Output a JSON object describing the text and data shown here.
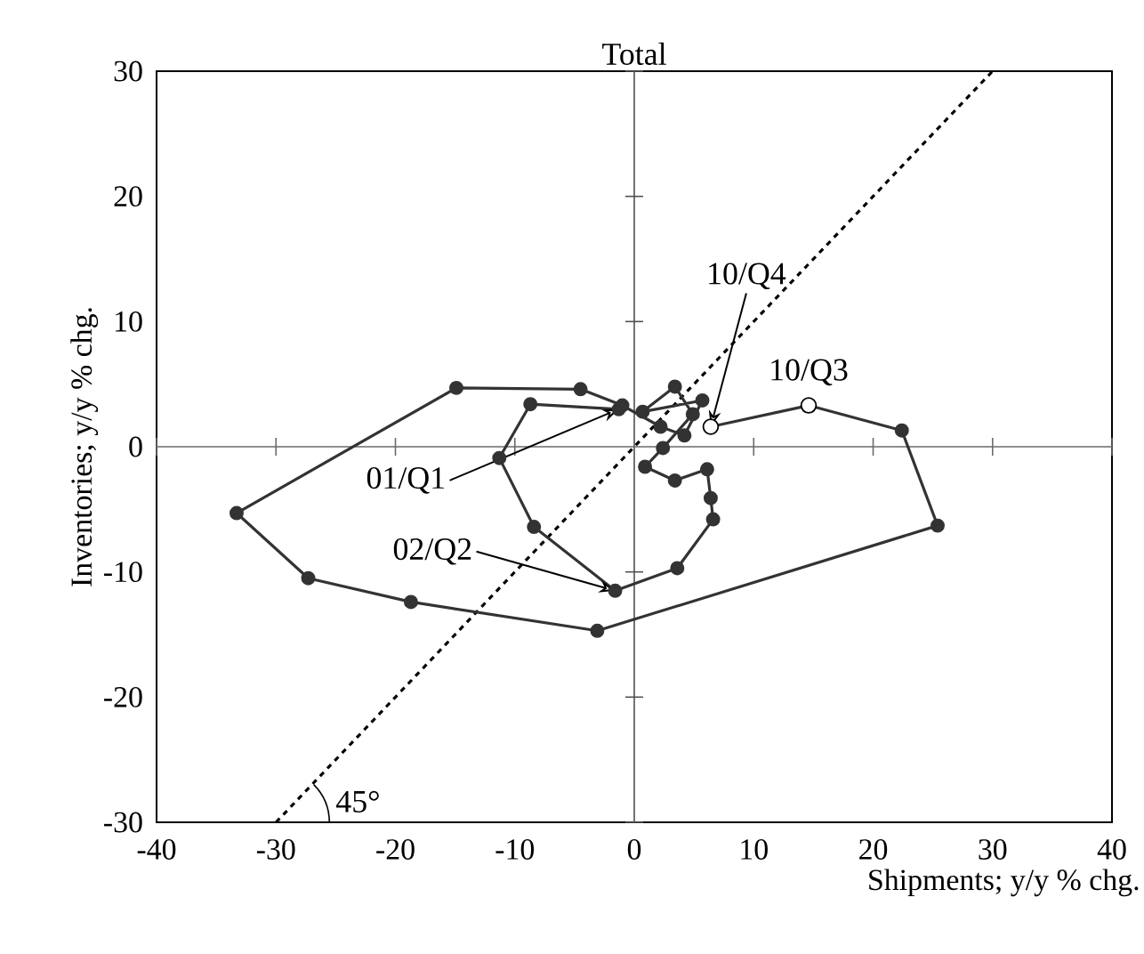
{
  "chart_data": {
    "type": "line",
    "title": "Total",
    "xlabel": "Shipments; y/y % chg.",
    "ylabel": "Inventories; y/y % chg.",
    "xlim": [
      -40,
      40
    ],
    "ylim": [
      -30,
      30
    ],
    "xticks": [
      -40,
      -30,
      -20,
      -10,
      0,
      10,
      20,
      30,
      40
    ],
    "yticks": [
      -30,
      -20,
      -10,
      0,
      10,
      20,
      30
    ],
    "grid": false,
    "marker": "circle",
    "line_style": "solid",
    "series": [
      {
        "color": "#333333",
        "x": [
          -1.3,
          -8.7,
          -11.3,
          -8.4,
          -1.6,
          3.6,
          6.6,
          6.4,
          6.1,
          3.4,
          0.9,
          2.4,
          4.9,
          3.4,
          0.7,
          5.7,
          4.2,
          2.2,
          -1.0,
          -4.5,
          -14.9,
          -33.3,
          -27.3,
          -18.7,
          -3.1,
          25.4,
          22.4,
          14.6,
          6.4
        ],
        "values": [
          3.0,
          3.4,
          -0.9,
          -6.4,
          -11.5,
          -9.7,
          -5.8,
          -4.1,
          -1.8,
          -2.7,
          -1.6,
          -0.1,
          2.6,
          4.8,
          2.8,
          3.7,
          0.9,
          1.6,
          3.3,
          4.6,
          4.7,
          -5.3,
          -10.5,
          -12.4,
          -14.7,
          -6.3,
          1.3,
          3.3,
          1.6
        ]
      },
      {
        "type": "scatter",
        "color": "#ffffff",
        "x": [
          14.6,
          6.4
        ],
        "values": [
          3.3,
          1.6
        ]
      },
      {
        "type": "line",
        "color": "#000000",
        "marker": "none",
        "line_style": "dashed",
        "x": [
          -30,
          30
        ],
        "values": [
          -30,
          30
        ]
      }
    ],
    "ref_lines": [
      {
        "axis": "x",
        "value": 0,
        "color": "#505050"
      },
      {
        "axis": "y",
        "value": 0,
        "color": "#6a6a6a"
      }
    ],
    "annotations": [
      {
        "text": "01/Q1",
        "x": -1.3,
        "y": 3.0
      },
      {
        "text": "02/Q2",
        "x": -1.6,
        "y": -11.5
      },
      {
        "text": "10/Q4",
        "x": 6.4,
        "y": 1.6
      },
      {
        "text": "10/Q3",
        "x": 14.6,
        "y": 3.3
      },
      "45°"
    ]
  }
}
